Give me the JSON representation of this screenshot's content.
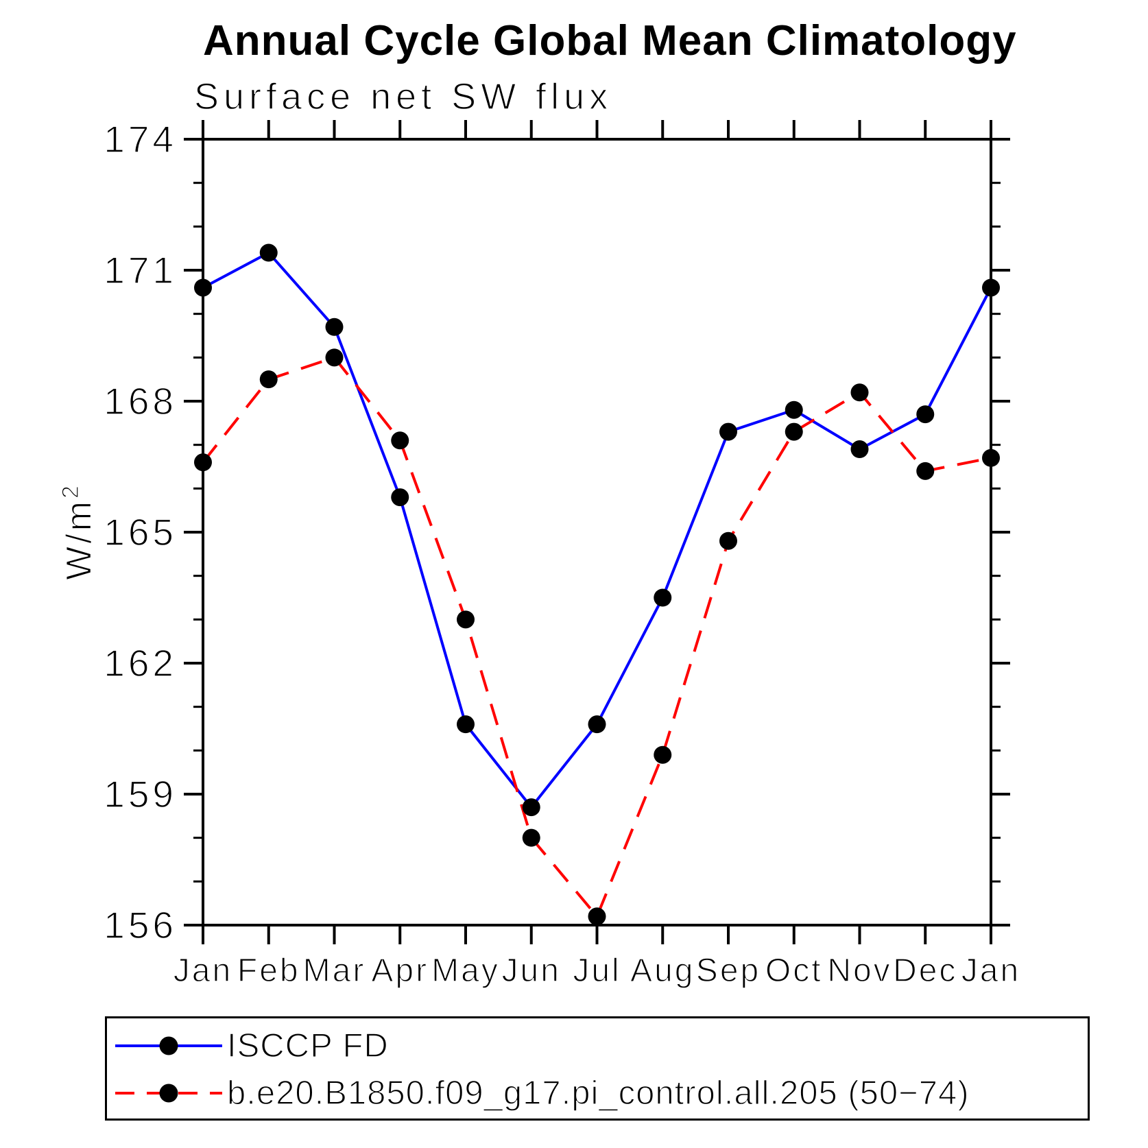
{
  "title": "Annual Cycle Global Mean Climatology",
  "subtitle": "Surface net SW flux",
  "y_axis": {
    "label_base": "W/m",
    "label_exponent": "2"
  },
  "chart_data": {
    "type": "line",
    "title": "Annual Cycle Global Mean Climatology",
    "subtitle": "Surface net SW flux",
    "ylabel": "W/m²",
    "xlabel": "",
    "ylim": [
      156,
      174
    ],
    "yticks_major": [
      156,
      159,
      162,
      165,
      168,
      171,
      174
    ],
    "yticks_minor_step": 1,
    "grid": false,
    "legend_position": "bottom-left-box",
    "categories": [
      "Jan",
      "Feb",
      "Mar",
      "Apr",
      "May",
      "Jun",
      "Jul",
      "Aug",
      "Sep",
      "Oct",
      "Nov",
      "Dec",
      "Jan"
    ],
    "series": [
      {
        "name": "ISCCP FD",
        "color": "#0000ff",
        "line_style": "solid",
        "marker": "filled-circle",
        "marker_color": "#000000",
        "values": [
          170.6,
          171.4,
          169.7,
          165.8,
          160.6,
          158.7,
          160.6,
          163.5,
          167.3,
          167.8,
          166.9,
          167.7,
          170.6
        ]
      },
      {
        "name": "b.e20.B1850.f09_g17.pi_control.all.205 (50−74)",
        "color": "#ff0000",
        "line_style": "dashed",
        "marker": "filled-circle",
        "marker_color": "#000000",
        "values": [
          166.6,
          168.5,
          169.0,
          167.1,
          163.0,
          158.0,
          156.2,
          159.9,
          164.8,
          167.3,
          168.2,
          166.4,
          166.7
        ]
      }
    ]
  }
}
